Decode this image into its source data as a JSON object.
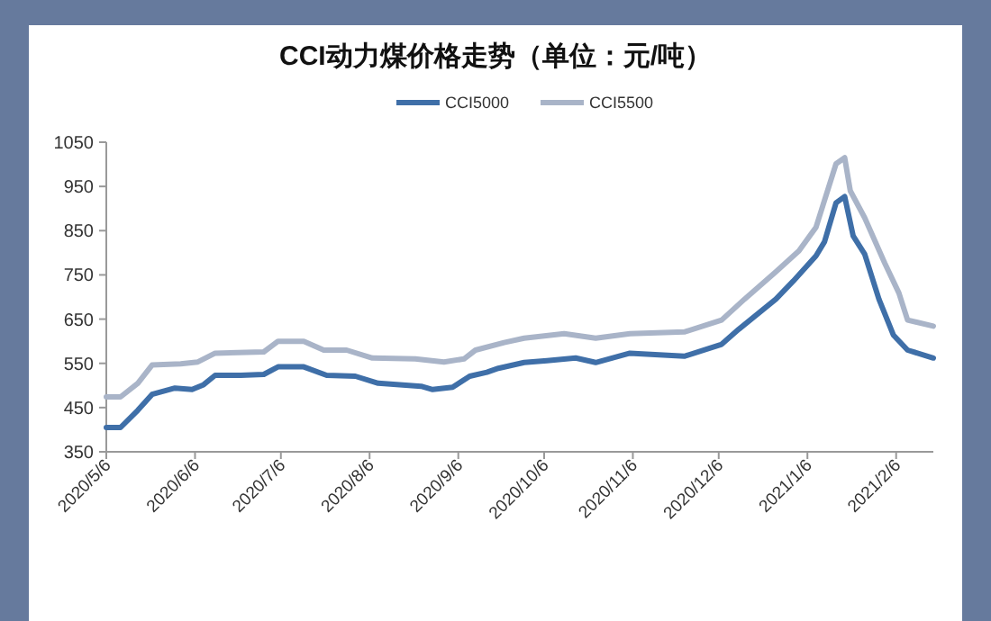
{
  "chart_data": {
    "type": "line",
    "title": "CCI动力煤价格走势（单位：元/吨）",
    "legend": "top",
    "grid": false,
    "xlim": [
      "2020-05-06",
      "2021-02-19"
    ],
    "xticks": [
      {
        "value": "2020-05-06",
        "label": "2020/5/6"
      },
      {
        "value": "2020-06-06",
        "label": "2020/6/6"
      },
      {
        "value": "2020-07-06",
        "label": "2020/7/6"
      },
      {
        "value": "2020-08-06",
        "label": "2020/8/6"
      },
      {
        "value": "2020-09-06",
        "label": "2020/9/6"
      },
      {
        "value": "2020-10-06",
        "label": "2020/10/6"
      },
      {
        "value": "2020-11-06",
        "label": "2020/11/6"
      },
      {
        "value": "2020-12-06",
        "label": "2020/12/6"
      },
      {
        "value": "2021-01-06",
        "label": "2021/1/6"
      },
      {
        "value": "2021-02-06",
        "label": "2021/2/6"
      }
    ],
    "ylim": [
      350,
      1050
    ],
    "yticks": [
      350,
      450,
      550,
      650,
      750,
      850,
      950,
      1050
    ],
    "series": [
      {
        "name": "CCI5000",
        "color": "#3f6fa8",
        "x": [
          "2020-05-06",
          "2020-05-11",
          "2020-05-17",
          "2020-05-22",
          "2020-05-30",
          "2020-06-05",
          "2020-06-09",
          "2020-06-13",
          "2020-06-22",
          "2020-06-30",
          "2020-07-05",
          "2020-07-14",
          "2020-07-22",
          "2020-08-01",
          "2020-08-09",
          "2020-08-24",
          "2020-08-28",
          "2020-09-04",
          "2020-09-10",
          "2020-09-16",
          "2020-09-20",
          "2020-09-29",
          "2020-10-07",
          "2020-10-17",
          "2020-10-24",
          "2020-11-05",
          "2020-11-24",
          "2020-12-07",
          "2020-12-13",
          "2020-12-26",
          "2021-01-01",
          "2021-01-09",
          "2021-01-12",
          "2021-01-16",
          "2021-01-19",
          "2021-01-22",
          "2021-01-26",
          "2021-01-31",
          "2021-02-05",
          "2021-02-10",
          "2021-02-19"
        ],
        "values": [
          405,
          405,
          444,
          480,
          494,
          491,
          502,
          523,
          523,
          525,
          542,
          542,
          523,
          521,
          505,
          498,
          491,
          496,
          521,
          530,
          539,
          552,
          556,
          562,
          552,
          573,
          566,
          593,
          627,
          695,
          736,
          793,
          825,
          913,
          927,
          838,
          797,
          695,
          614,
          580,
          562
        ]
      },
      {
        "name": "CCI5500",
        "color": "#a9b4c8",
        "x": [
          "2020-05-06",
          "2020-05-11",
          "2020-05-17",
          "2020-05-22",
          "2020-06-01",
          "2020-06-07",
          "2020-06-13",
          "2020-06-30",
          "2020-07-05",
          "2020-07-14",
          "2020-07-21",
          "2020-07-29",
          "2020-08-07",
          "2020-08-22",
          "2020-09-01",
          "2020-09-08",
          "2020-09-12",
          "2020-09-22",
          "2020-09-29",
          "2020-10-13",
          "2020-10-24",
          "2020-11-05",
          "2020-11-24",
          "2020-12-07",
          "2020-12-15",
          "2020-12-26",
          "2021-01-03",
          "2021-01-09",
          "2021-01-16",
          "2021-01-19",
          "2021-01-21",
          "2021-01-26",
          "2021-02-02",
          "2021-02-07",
          "2021-02-10",
          "2021-02-19"
        ],
        "values": [
          474,
          474,
          505,
          546,
          549,
          553,
          573,
          576,
          600,
          600,
          580,
          580,
          562,
          560,
          553,
          560,
          580,
          597,
          607,
          617,
          607,
          617,
          621,
          648,
          695,
          757,
          804,
          858,
          1001,
          1015,
          940,
          879,
          777,
          709,
          648,
          634
        ]
      }
    ]
  }
}
